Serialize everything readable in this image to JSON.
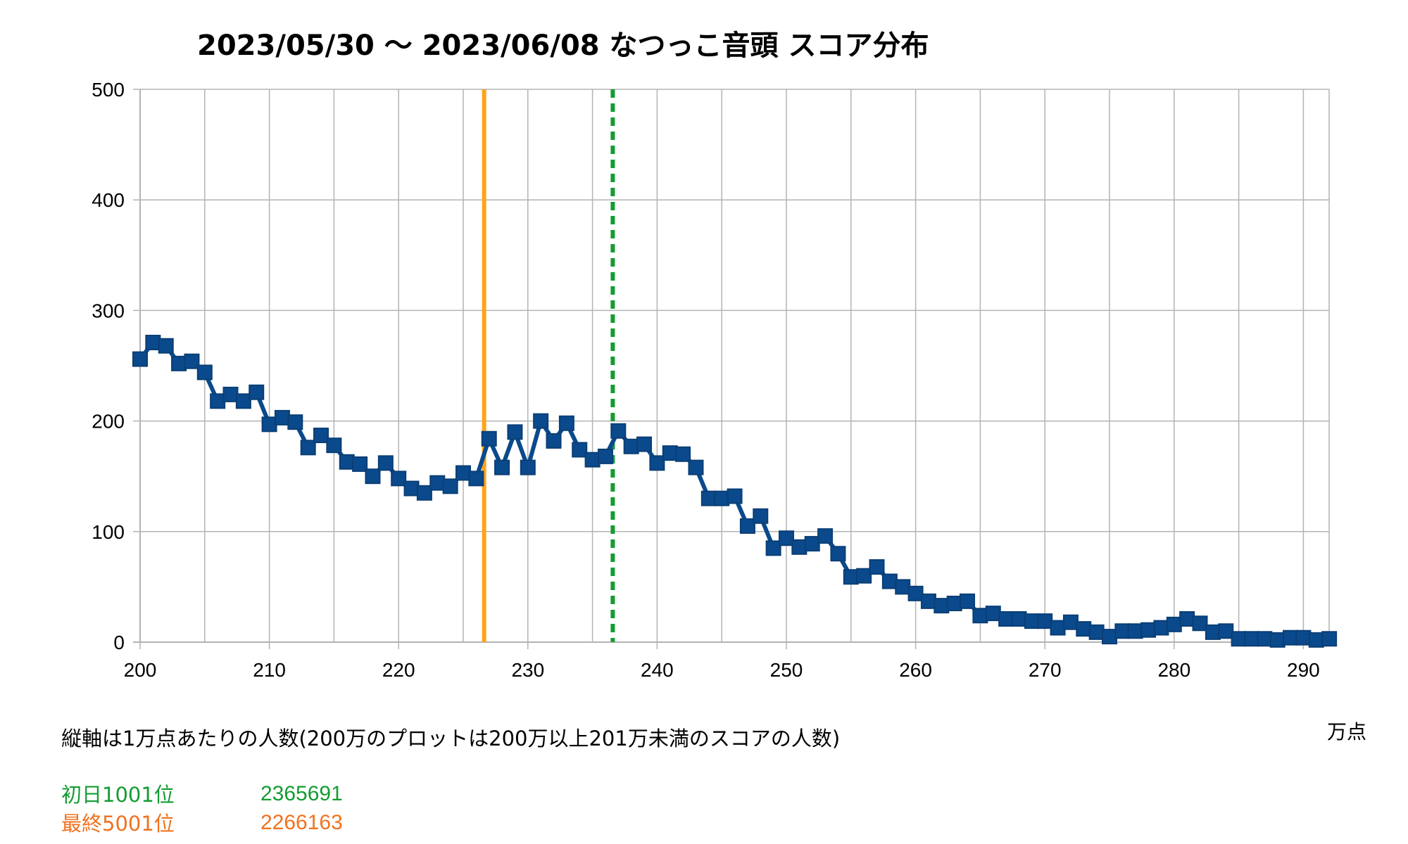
{
  "chart_data": {
    "type": "line",
    "title": "2023/05/30 〜 2023/06/08 なつっこ音頭 スコア分布",
    "x_unit": "万点",
    "xlim": [
      200,
      292
    ],
    "ylim": [
      0,
      500
    ],
    "x_ticks": [
      200,
      210,
      220,
      230,
      240,
      250,
      260,
      270,
      280,
      290
    ],
    "y_ticks": [
      0,
      100,
      200,
      300,
      400,
      500
    ],
    "grid": true,
    "series": [
      {
        "color": "#0a4a8c",
        "x": [
          200,
          201,
          202,
          203,
          204,
          205,
          206,
          207,
          208,
          209,
          210,
          211,
          212,
          213,
          214,
          215,
          216,
          217,
          218,
          219,
          220,
          221,
          222,
          223,
          224,
          225,
          226,
          227,
          228,
          229,
          230,
          231,
          232,
          233,
          234,
          235,
          236,
          237,
          238,
          239,
          240,
          241,
          242,
          243,
          244,
          245,
          246,
          247,
          248,
          249,
          250,
          251,
          252,
          253,
          254,
          255,
          256,
          257,
          258,
          259,
          260,
          261,
          262,
          263,
          264,
          265,
          266,
          267,
          268,
          269,
          270,
          271,
          272,
          273,
          274,
          275,
          276,
          277,
          278,
          279,
          280,
          281,
          282,
          283,
          284,
          285,
          286,
          287,
          288,
          289,
          290,
          291,
          292
        ],
        "values": [
          256,
          271,
          268,
          252,
          254,
          244,
          218,
          224,
          218,
          226,
          197,
          203,
          199,
          176,
          187,
          178,
          163,
          161,
          150,
          162,
          148,
          139,
          135,
          144,
          141,
          153,
          148,
          184,
          158,
          190,
          158,
          200,
          182,
          198,
          174,
          165,
          168,
          191,
          177,
          179,
          162,
          171,
          170,
          158,
          130,
          130,
          132,
          105,
          114,
          85,
          94,
          86,
          89,
          96,
          80,
          59,
          60,
          68,
          55,
          50,
          44,
          37,
          33,
          35,
          37,
          24,
          26,
          21,
          21,
          19,
          19,
          13,
          18,
          12,
          9,
          5,
          10,
          10,
          11,
          13,
          16,
          21,
          17,
          9,
          10,
          3,
          3,
          3,
          2,
          4,
          4,
          2,
          3
        ]
      }
    ],
    "markers": [
      {
        "x": 226.6163,
        "color": "#ffa31a",
        "style": "solid"
      },
      {
        "x": 236.5691,
        "color": "#149c32",
        "style": "dashed"
      }
    ]
  },
  "note": "縦軸は1万点あたりの人数(200万のプロットは200万以上201万未満のスコアの人数)",
  "legend": [
    {
      "label": "初日1001位",
      "value": "2365691",
      "color": "#149c32"
    },
    {
      "label": "最終5001位",
      "value": "2266163",
      "color": "#f0721f"
    }
  ]
}
